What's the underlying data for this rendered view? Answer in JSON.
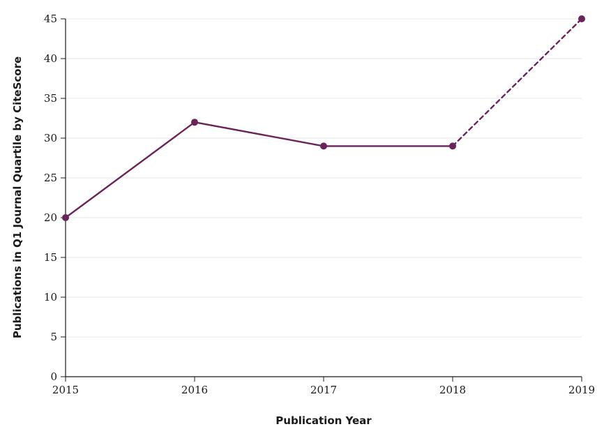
{
  "chart_data": {
    "type": "line",
    "title": "",
    "xlabel": "Publication Year",
    "ylabel": "Publications in Q1 Journal Quartile by CiteScore",
    "x": [
      2015,
      2016,
      2017,
      2018,
      2019
    ],
    "xticks": [
      "2015",
      "2016",
      "2017",
      "2018",
      "2019"
    ],
    "yticks": [
      "0",
      "5",
      "10",
      "15",
      "20",
      "25",
      "30",
      "35",
      "40",
      "45"
    ],
    "ylim": [
      0,
      45
    ],
    "grid": "horizontal",
    "legend": "none",
    "series": [
      {
        "values": [
          20,
          32,
          29,
          29,
          45
        ],
        "color": "#6b2459",
        "line_style": [
          "solid",
          "solid",
          "solid",
          "dashed"
        ]
      }
    ]
  }
}
